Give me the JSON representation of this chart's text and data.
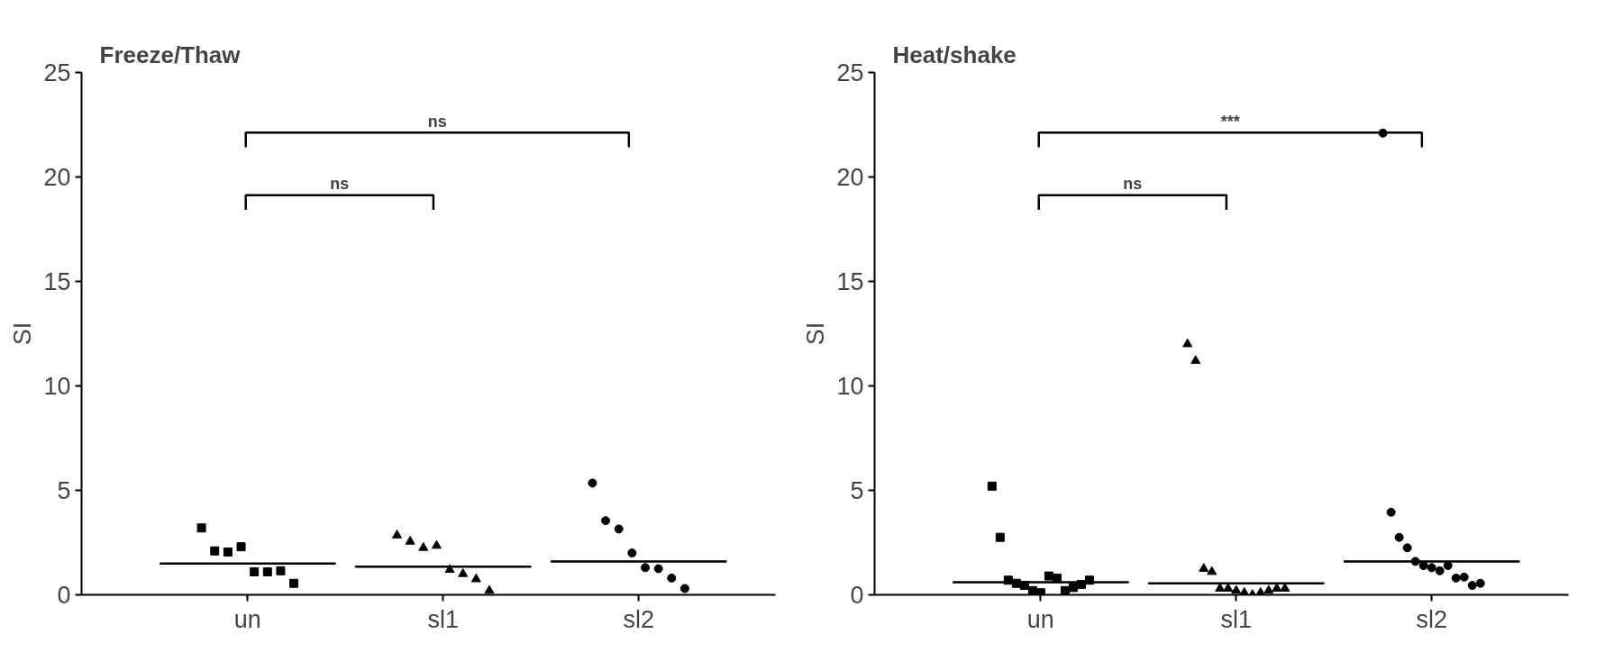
{
  "chart_data": [
    {
      "type": "scatter",
      "title": "Freeze/Thaw",
      "ylabel": "SI",
      "categories": [
        "un",
        "sl1",
        "sl2"
      ],
      "ylim": [
        0,
        25
      ],
      "yticks": [
        0,
        5,
        10,
        15,
        20,
        25
      ],
      "grid": false,
      "series": [
        {
          "marker": "square",
          "color": "#000000",
          "x": [
            "un",
            "un",
            "un",
            "un",
            "un",
            "un",
            "un",
            "un"
          ],
          "values": [
            3.2,
            2.1,
            2.05,
            2.3,
            1.1,
            1.1,
            1.15,
            0.55
          ]
        },
        {
          "marker": "triangle",
          "color": "#000000",
          "x": [
            "sl1",
            "sl1",
            "sl1",
            "sl1",
            "sl1",
            "sl1",
            "sl1",
            "sl1"
          ],
          "values": [
            2.85,
            2.55,
            2.25,
            2.35,
            1.2,
            1.0,
            0.75,
            0.2
          ]
        },
        {
          "marker": "circle",
          "color": "#000000",
          "x": [
            "sl2",
            "sl2",
            "sl2",
            "sl2",
            "sl2",
            "sl2",
            "sl2",
            "sl2"
          ],
          "values": [
            5.35,
            3.55,
            3.15,
            2.0,
            1.3,
            1.25,
            0.8,
            0.3
          ]
        },
        {
          "type": "box",
          "color": "#000000",
          "boxes": [
            {
              "low": 1.5,
              "q1": 1.5,
              "median": 1.5,
              "q3": 1.5,
              "high": 1.5
            },
            {
              "low": 1.35,
              "q1": 1.35,
              "median": 1.35,
              "q3": 1.35,
              "high": 1.35
            },
            {
              "low": 1.6,
              "q1": 1.6,
              "median": 1.6,
              "q3": 1.6,
              "high": 1.6
            }
          ]
        }
      ],
      "annotations": [
        "ns",
        "ns"
      ]
    },
    {
      "type": "scatter",
      "title": "Heat/shake",
      "ylabel": "SI",
      "categories": [
        "un",
        "sl1",
        "sl2"
      ],
      "ylim": [
        0,
        25
      ],
      "yticks": [
        0,
        5,
        10,
        15,
        20,
        25
      ],
      "grid": false,
      "series": [
        {
          "marker": "square",
          "color": "#000000",
          "x": [
            "un",
            "un",
            "un",
            "un",
            "un",
            "un",
            "un",
            "un",
            "un",
            "un",
            "un",
            "un",
            "un"
          ],
          "values": [
            5.2,
            2.75,
            0.7,
            0.55,
            0.45,
            0.2,
            0.1,
            0.9,
            0.8,
            0.2,
            0.35,
            0.5,
            0.7
          ]
        },
        {
          "marker": "triangle",
          "color": "#000000",
          "x": [
            "sl1",
            "sl1",
            "sl1",
            "sl1",
            "sl1",
            "sl1",
            "sl1",
            "sl1",
            "sl1",
            "sl1",
            "sl1",
            "sl1",
            "sl1"
          ],
          "values": [
            12.0,
            11.2,
            1.25,
            1.1,
            0.3,
            0.3,
            0.2,
            0.1,
            0.0,
            0.1,
            0.2,
            0.3,
            0.3
          ]
        },
        {
          "marker": "circle",
          "color": "#000000",
          "x": [
            "sl2",
            "sl2",
            "sl2",
            "sl2",
            "sl2",
            "sl2",
            "sl2",
            "sl2",
            "sl2",
            "sl2",
            "sl2",
            "sl2",
            "sl2"
          ],
          "values": [
            22.1,
            3.95,
            2.75,
            2.25,
            1.6,
            1.4,
            1.3,
            1.15,
            1.4,
            0.8,
            0.85,
            0.45,
            0.55
          ]
        },
        {
          "type": "box",
          "color": "#000000",
          "boxes": [
            {
              "low": 0.6,
              "q1": 0.6,
              "median": 0.6,
              "q3": 0.6,
              "high": 0.6
            },
            {
              "low": 0.55,
              "q1": 0.55,
              "median": 0.55,
              "q3": 0.55,
              "high": 0.55
            },
            {
              "low": 1.6,
              "q1": 1.6,
              "median": 1.6,
              "q3": 1.6,
              "high": 1.6
            }
          ]
        }
      ],
      "annotations": [
        "ns",
        "***"
      ]
    }
  ]
}
